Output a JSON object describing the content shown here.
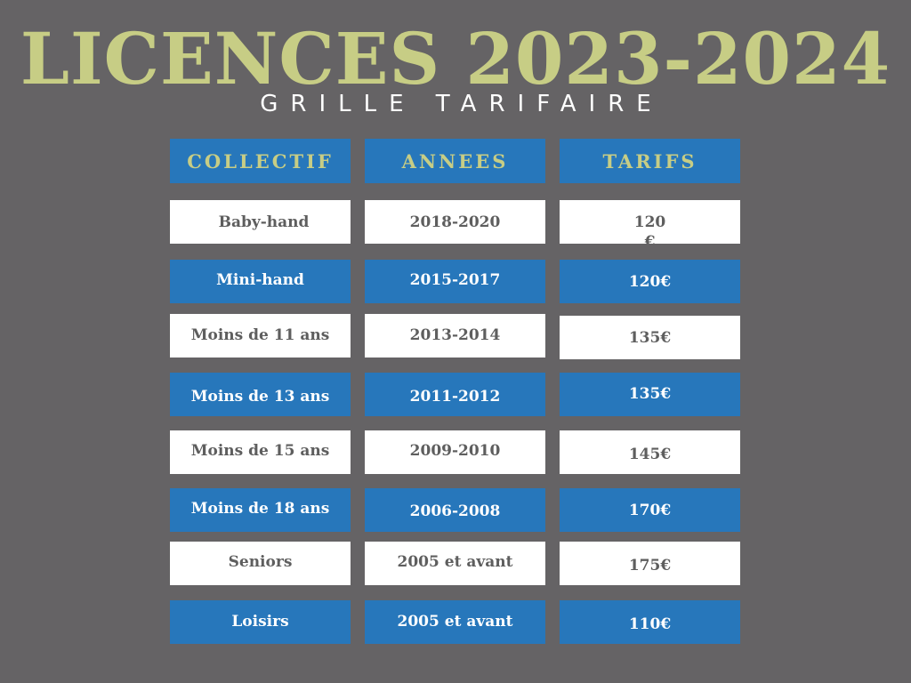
{
  "title": "LICENCES 2023-2024",
  "subtitle": "GRILLE TARIFAIRE",
  "headers": {
    "collectif": "COLLECTIF",
    "annees": "ANNEES",
    "tarifs": "TARIFS"
  },
  "rows": [
    {
      "collectif": "Baby-hand",
      "annees": "2018-2020",
      "tarif": "120 €",
      "style": "white"
    },
    {
      "collectif": "Mini-hand",
      "annees": "2015-2017",
      "tarif": "120€",
      "style": "blue"
    },
    {
      "collectif": "Moins de 11 ans",
      "annees": "2013-2014",
      "tarif": "135€",
      "style": "white"
    },
    {
      "collectif": "Moins de 13 ans",
      "annees": "2011-2012",
      "tarif": "135€",
      "style": "blue"
    },
    {
      "collectif": "Moins de 15 ans",
      "annees": "2009-2010",
      "tarif": "145€",
      "style": "white"
    },
    {
      "collectif": "Moins de 18 ans",
      "annees": "2006-2008",
      "tarif": "170€",
      "style": "blue"
    },
    {
      "collectif": "Seniors",
      "annees": "2005 et avant",
      "tarif": "175€",
      "style": "white"
    },
    {
      "collectif": "Loisirs",
      "annees": "2005 et avant",
      "tarif": "110€",
      "style": "blue"
    }
  ],
  "colors": {
    "background": "#656365",
    "title": "#c7cd85",
    "blue": "#2777bb",
    "white": "#ffffff",
    "dark_text": "#5e5e5e"
  }
}
